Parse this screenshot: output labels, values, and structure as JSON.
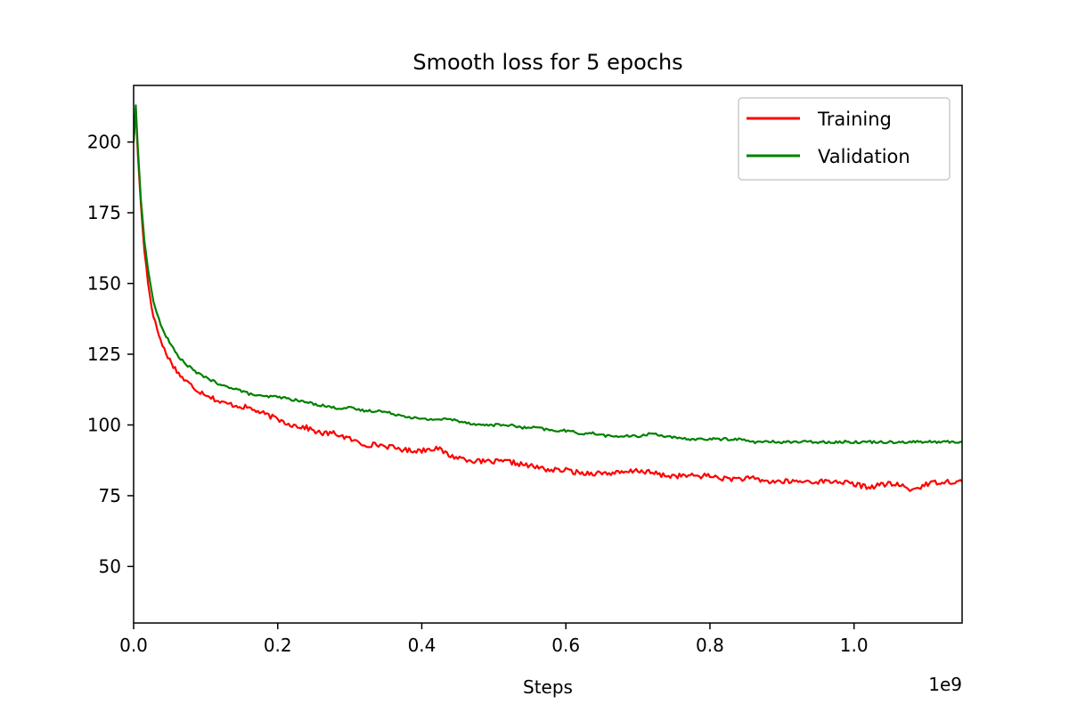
{
  "chart_data": {
    "type": "line",
    "title": "Smooth loss for 5 epochs",
    "xlabel": "Steps",
    "ylabel": "",
    "x_offset_text": "1e9",
    "xlim": [
      0,
      1.15
    ],
    "ylim": [
      30,
      220
    ],
    "xticks": [
      0.0,
      0.2,
      0.4,
      0.6,
      0.8,
      1.0
    ],
    "xtick_labels": [
      "0.0",
      "0.2",
      "0.4",
      "0.6",
      "0.8",
      "1.0"
    ],
    "yticks": [
      50,
      75,
      100,
      125,
      150,
      175,
      200
    ],
    "ytick_labels": [
      "50",
      "75",
      "100",
      "125",
      "150",
      "175",
      "200"
    ],
    "grid": false,
    "legend_position": "top-right",
    "series": [
      {
        "name": "Training",
        "color": "#ff0000",
        "x": [
          0.0,
          0.003,
          0.006,
          0.01,
          0.015,
          0.02,
          0.025,
          0.03,
          0.04,
          0.05,
          0.06,
          0.07,
          0.08,
          0.09,
          0.1,
          0.12,
          0.14,
          0.16,
          0.18,
          0.2,
          0.22,
          0.24,
          0.26,
          0.28,
          0.3,
          0.32,
          0.34,
          0.36,
          0.38,
          0.4,
          0.42,
          0.44,
          0.46,
          0.48,
          0.5,
          0.52,
          0.54,
          0.56,
          0.58,
          0.6,
          0.62,
          0.64,
          0.66,
          0.68,
          0.7,
          0.72,
          0.74,
          0.76,
          0.78,
          0.8,
          0.82,
          0.84,
          0.86,
          0.88,
          0.9,
          0.92,
          0.94,
          0.96,
          0.98,
          1.0,
          1.02,
          1.04,
          1.06,
          1.08,
          1.1,
          1.12,
          1.14,
          1.15
        ],
        "values": [
          200,
          212,
          195,
          178,
          162,
          150,
          142,
          136,
          128,
          123,
          119,
          116,
          114,
          112,
          111,
          108,
          107,
          106,
          104,
          102,
          100,
          99,
          97,
          97,
          95,
          93,
          93,
          92,
          91,
          91,
          92,
          89,
          88,
          87,
          87,
          87,
          86,
          85,
          84,
          84,
          83,
          83,
          83,
          83,
          84,
          83,
          82,
          82,
          82,
          82,
          81,
          81,
          81,
          80,
          80,
          80,
          80,
          80,
          80,
          79,
          78,
          79,
          79,
          77,
          79,
          80,
          80,
          80
        ]
      },
      {
        "name": "Validation",
        "color": "#008000",
        "x": [
          0.0,
          0.003,
          0.006,
          0.01,
          0.015,
          0.02,
          0.025,
          0.03,
          0.04,
          0.05,
          0.06,
          0.07,
          0.08,
          0.09,
          0.1,
          0.12,
          0.14,
          0.16,
          0.18,
          0.2,
          0.22,
          0.24,
          0.26,
          0.28,
          0.3,
          0.32,
          0.34,
          0.36,
          0.38,
          0.4,
          0.42,
          0.44,
          0.46,
          0.48,
          0.5,
          0.52,
          0.54,
          0.56,
          0.58,
          0.6,
          0.62,
          0.64,
          0.66,
          0.68,
          0.7,
          0.72,
          0.74,
          0.76,
          0.78,
          0.8,
          0.82,
          0.84,
          0.86,
          0.88,
          0.9,
          0.92,
          0.94,
          0.96,
          0.98,
          1.0,
          1.02,
          1.04,
          1.06,
          1.08,
          1.1,
          1.12,
          1.14,
          1.15
        ],
        "values": [
          200,
          213,
          197,
          180,
          165,
          155,
          147,
          141,
          134,
          129,
          125,
          122,
          120,
          118,
          117,
          114,
          113,
          111,
          110,
          110,
          109,
          108,
          107,
          106,
          106,
          105,
          105,
          104,
          103,
          102,
          102,
          102,
          101,
          100,
          100,
          100,
          99,
          99,
          98,
          98,
          97,
          97,
          96,
          96,
          96,
          97,
          96,
          95,
          95,
          95,
          95,
          95,
          94,
          94,
          94,
          94,
          94,
          94,
          94,
          94,
          94,
          94,
          94,
          94,
          94,
          94,
          94,
          94
        ]
      }
    ]
  }
}
